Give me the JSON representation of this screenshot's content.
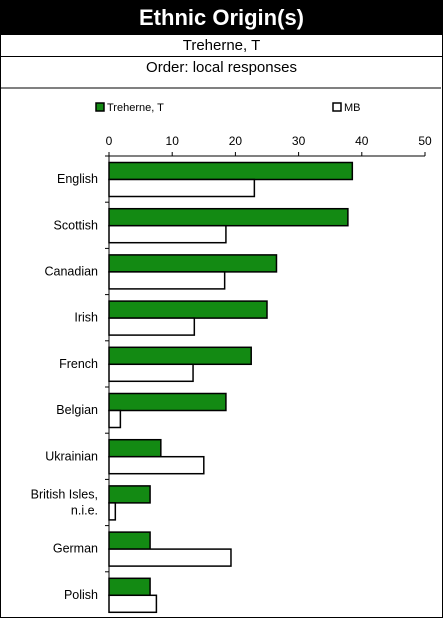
{
  "header": {
    "title": "Ethnic Origin(s)",
    "location": "Treherne, T",
    "order": "Order: local responses"
  },
  "colors": {
    "local": "#138a13",
    "mb": "#ffffff",
    "title_bg": "#000000"
  },
  "chart_data": {
    "type": "bar",
    "orientation": "horizontal",
    "legend_position": "top",
    "xlim": [
      0,
      50
    ],
    "xticks": [
      0,
      10,
      20,
      30,
      40,
      50
    ],
    "categories": [
      "English",
      "Scottish",
      "Canadian",
      "Irish",
      "French",
      "Belgian",
      "Ukrainian",
      "British Isles, n.i.e.",
      "German",
      "Polish"
    ],
    "category_lines": [
      [
        "English"
      ],
      [
        "Scottish"
      ],
      [
        "Canadian"
      ],
      [
        "Irish"
      ],
      [
        "French"
      ],
      [
        "Belgian"
      ],
      [
        "Ukrainian"
      ],
      [
        "British Isles,",
        "n.i.e."
      ],
      [
        "German"
      ],
      [
        "Polish"
      ]
    ],
    "series": [
      {
        "name": "Treherne, T",
        "values": [
          38.5,
          37.8,
          26.5,
          25.0,
          22.5,
          18.5,
          8.2,
          6.5,
          6.5,
          6.5
        ]
      },
      {
        "name": "MB",
        "values": [
          23.0,
          18.5,
          18.3,
          13.5,
          13.3,
          1.8,
          15.0,
          1.0,
          19.3,
          7.5
        ]
      }
    ]
  }
}
